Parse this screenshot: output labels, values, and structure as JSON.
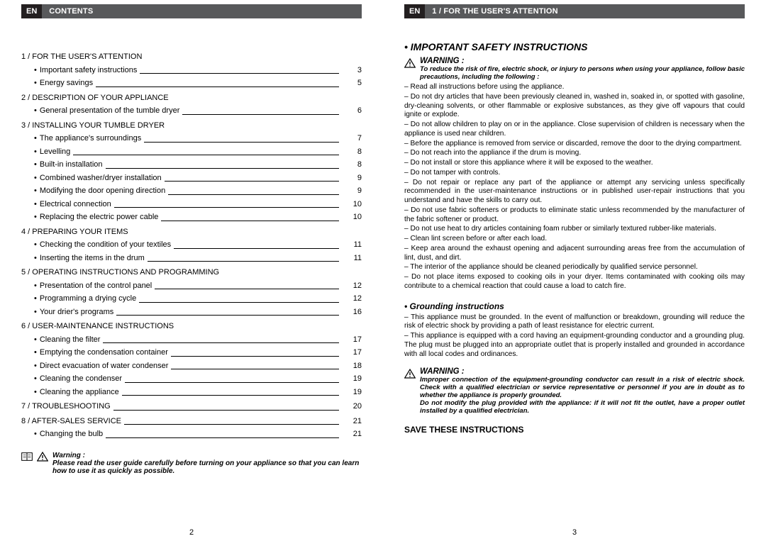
{
  "left": {
    "header_en": "EN",
    "header_title": "CONTENTS",
    "sections": [
      {
        "title": "1 / FOR THE USER'S ATTENTION",
        "rows": [
          {
            "label": "Important safety instructions",
            "page": "3"
          },
          {
            "label": "Energy savings",
            "page": "5"
          }
        ]
      },
      {
        "title": "2 / DESCRIPTION OF YOUR APPLIANCE",
        "rows": [
          {
            "label": "General presentation of the tumble dryer",
            "page": "6"
          }
        ]
      },
      {
        "title": "3 / INSTALLING YOUR TUMBLE DRYER",
        "rows": [
          {
            "label": "The appliance's surroundings",
            "page": "7"
          },
          {
            "label": "Levelling",
            "page": "8"
          },
          {
            "label": "Built-in installation",
            "page": "8"
          },
          {
            "label": "Combined washer/dryer installation",
            "page": "9"
          },
          {
            "label": "Modifying the door opening direction",
            "page": "9"
          },
          {
            "label": "Electrical connection",
            "page": "10"
          },
          {
            "label": "Replacing the electric power cable",
            "page": "10"
          }
        ]
      },
      {
        "title": "4 / PREPARING YOUR ITEMS",
        "rows": [
          {
            "label": "Checking the condition of your textiles",
            "page": "11"
          },
          {
            "label": "Inserting the items in the drum",
            "page": "11"
          }
        ]
      },
      {
        "title": "5 / OPERATING INSTRUCTIONS AND PROGRAMMING",
        "rows": [
          {
            "label": "Presentation of the control panel",
            "page": "12"
          },
          {
            "label": "Programming a drying cycle",
            "page": "12"
          },
          {
            "label": "Your drier's programs",
            "page": "16"
          }
        ]
      },
      {
        "title": "6 / USER-MAINTENANCE INSTRUCTIONS",
        "rows": [
          {
            "label": "Cleaning the filter",
            "page": "17"
          },
          {
            "label": "Emptying the condensation container",
            "page": "17"
          },
          {
            "label": "Direct evacuation of water condenser",
            "page": "18"
          },
          {
            "label": "Cleaning the condenser",
            "page": "19"
          },
          {
            "label": "Cleaning the appliance",
            "page": "19"
          }
        ]
      },
      {
        "title": "7 / TROUBLESHOOTING",
        "page": "20",
        "flat": true
      },
      {
        "title": "8 / AFTER-SALES SERVICE",
        "page": "21",
        "flat": true,
        "rows": [
          {
            "label": "Changing the bulb",
            "page": "21"
          }
        ]
      }
    ],
    "warning_title": "Warning :",
    "warning_text": "Please read the user guide carefully before turning on your appliance so that you can learn how to use it as quickly as possible.",
    "footer": "2"
  },
  "right": {
    "header_en": "EN",
    "header_title": "1 / FOR THE USER'S ATTENTION",
    "important_title": "• IMPORTANT SAFETY INSTRUCTIONS",
    "warn1_title": "WARNING :",
    "warn1_text": "To reduce the risk of fire, electric shock, or injury to persons when using your appliance, follow basic precautions, including the following :",
    "bullets": [
      "– Read all instructions before using the appliance.",
      "– Do not dry articles that have been previously cleaned in, washed in, soaked in, or spotted with gasoline, dry-cleaning solvents, or other flammable or explosive substances, as they give off vapours that could ignite or explode.",
      "– Do not allow children to play on or in the appliance. Close supervision of children is necessary when the appliance is used near children.",
      "– Before the appliance is removed from service or discarded, remove the door to the drying compartment.",
      "– Do not reach into the appliance if the drum is moving.",
      "– Do not install or store this appliance where it will be exposed to the weather.",
      "– Do not tamper with controls.",
      "– Do not repair or replace any part of the appliance or attempt any servicing unless specifically recommended in the user-maintenance instructions or in published user-repair instructions that you understand and have the skills to carry out.",
      "– Do not use fabric softeners or products to eliminate static unless recommended by the manufacturer of the fabric softener or product.",
      "– Do not use heat to dry articles containing foam rubber or similarly textured rubber-like materials.",
      "– Clean lint screen before or after each load.",
      "– Keep area around the exhaust opening and adjacent surrounding areas free from the accumulation of lint, dust, and dirt.",
      "– The interior of the appliance should be cleaned periodically by qualified service personnel.",
      "– Do not place items exposed to cooking oils in your dryer. Items contaminated with cooking oils may contribute to a chemical reaction that could cause a load to catch fire."
    ],
    "grounding_title": "• Grounding instructions",
    "grounding_bullets": [
      "– This appliance must be grounded. In the event of malfunction or breakdown, grounding will reduce the risk of electric shock by providing a path of least resistance for electric current.",
      "– This appliance is equipped with a cord having an equipment-grounding conductor and a grounding plug. The plug must be plugged into an appropriate outlet that is properly installed and grounded in accordance with all local codes and ordinances."
    ],
    "warn2_title": "WARNING :",
    "warn2_text": "Improper connection of the equipment-grounding conductor can result in a risk of electric shock. Check with a qualified electrician or service representative or personnel if you are in doubt as to whether the appliance is properly grounded.",
    "warn2_text2": "Do not modify the plug provided with the appliance: if it will not fit the outlet, have a proper outlet installed by a qualified electrician.",
    "save_title": "SAVE THESE INSTRUCTIONS",
    "footer": "3"
  }
}
